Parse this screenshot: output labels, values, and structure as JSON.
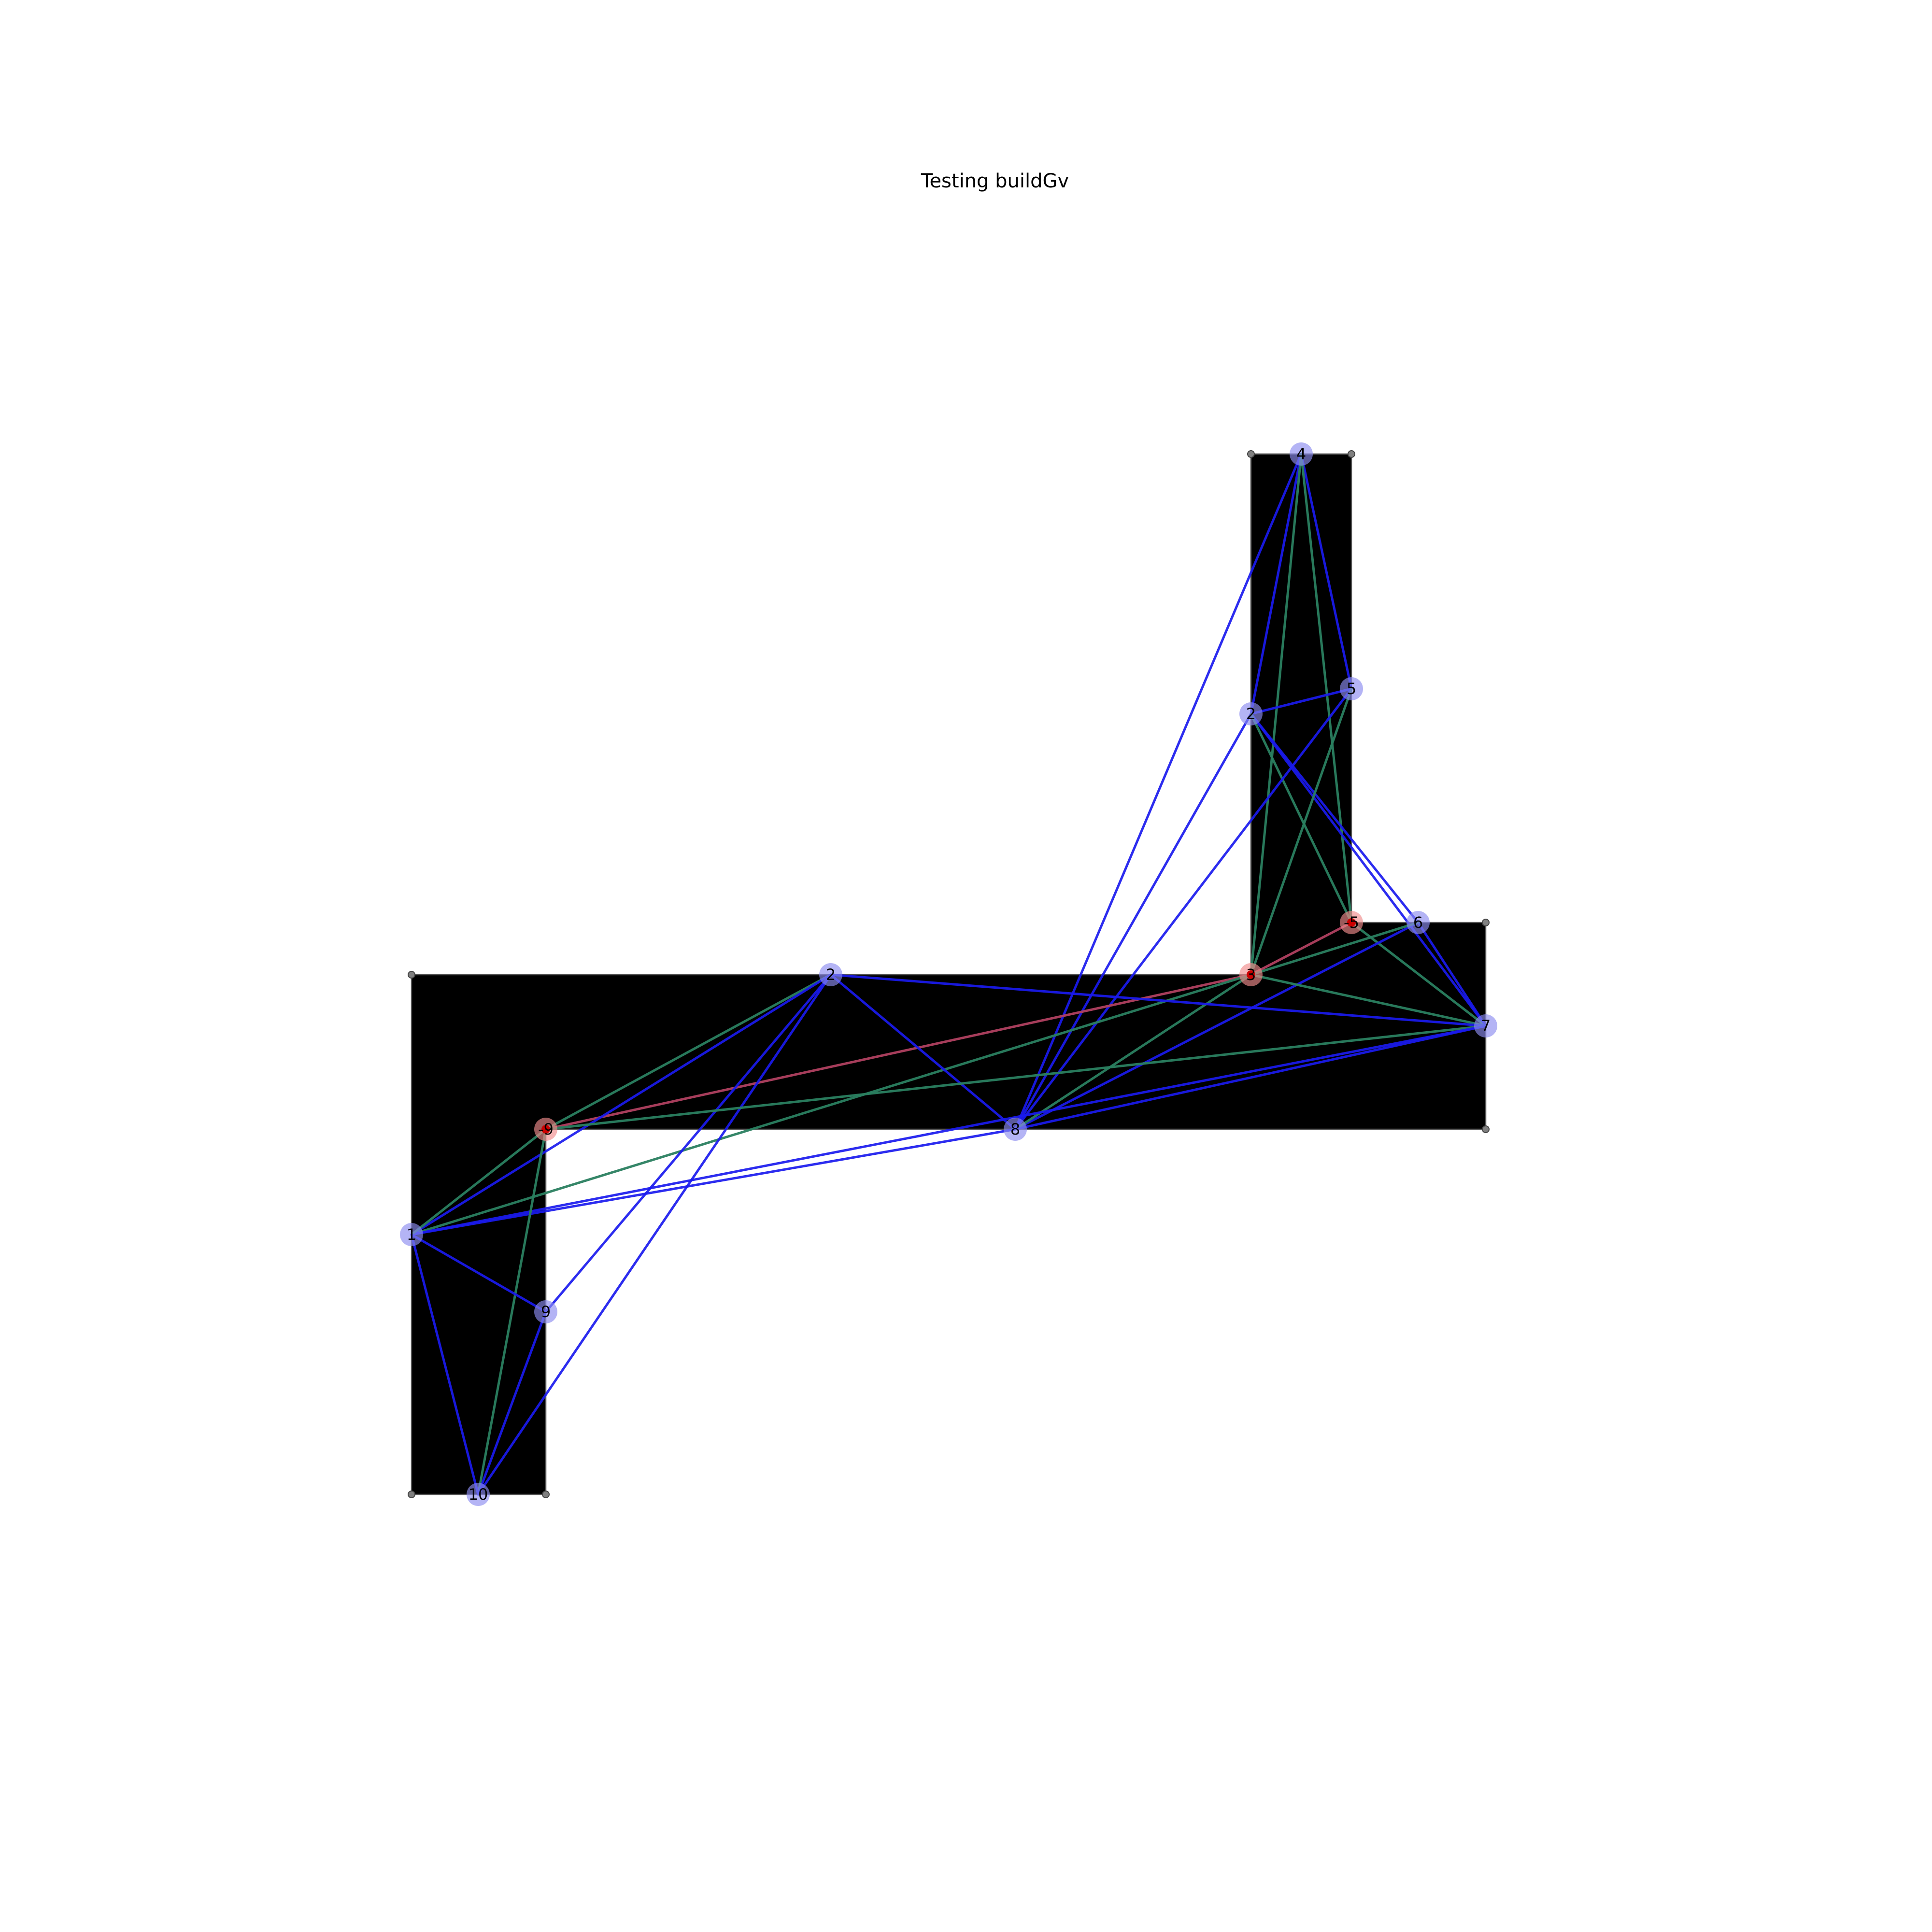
{
  "title": "Testing buildGv",
  "colors": {
    "region_fill": "#b0cbe3",
    "edge_blue": "#1a1aee",
    "edge_green": "#2a8060",
    "edge_dark_green": "#138a13",
    "edge_red": "#b04060",
    "node_blue": "#8c8cf0",
    "node_red": "#f08c8c",
    "corner": "#808080"
  },
  "nodes": [
    {
      "id": "n1",
      "label": "1",
      "type": "blue"
    },
    {
      "id": "n2",
      "label": "2",
      "type": "blue"
    },
    {
      "id": "n3",
      "label": "3",
      "type": "red"
    },
    {
      "id": "n4",
      "label": "4",
      "type": "blue"
    },
    {
      "id": "n5",
      "label": "5",
      "type": "blue"
    },
    {
      "id": "n6",
      "label": "6",
      "type": "blue"
    },
    {
      "id": "n7",
      "label": "7",
      "type": "blue"
    },
    {
      "id": "n8",
      "label": "8",
      "type": "blue"
    },
    {
      "id": "n9",
      "label": "9",
      "type": "blue"
    },
    {
      "id": "n10",
      "label": "10",
      "type": "blue"
    },
    {
      "id": "nA",
      "label": "-9",
      "type": "red"
    },
    {
      "id": "nB",
      "label": "2",
      "type": "blue"
    },
    {
      "id": "nC",
      "label": "-5",
      "type": "red"
    }
  ],
  "edges": [
    {
      "from": "n4",
      "to": "n5",
      "color": "blue"
    },
    {
      "from": "n4",
      "to": "nB",
      "color": "blue"
    },
    {
      "from": "n4",
      "to": "n8",
      "color": "blue"
    },
    {
      "from": "n4",
      "to": "n3",
      "color": "green"
    },
    {
      "from": "n4",
      "to": "nC",
      "color": "green"
    },
    {
      "from": "nB",
      "to": "n5",
      "color": "blue"
    },
    {
      "from": "nB",
      "to": "n8",
      "color": "blue"
    },
    {
      "from": "nB",
      "to": "n6",
      "color": "blue"
    },
    {
      "from": "nB",
      "to": "n7",
      "color": "blue"
    },
    {
      "from": "nB",
      "to": "nC",
      "color": "green"
    },
    {
      "from": "n5",
      "to": "n8",
      "color": "blue"
    },
    {
      "from": "n5",
      "to": "n3",
      "color": "green"
    },
    {
      "from": "nC",
      "to": "n3",
      "color": "red"
    },
    {
      "from": "nC",
      "to": "n7",
      "color": "green"
    },
    {
      "from": "n6",
      "to": "n7",
      "color": "blue"
    },
    {
      "from": "n6",
      "to": "n8",
      "color": "blue"
    },
    {
      "from": "n6",
      "to": "n3",
      "color": "green"
    },
    {
      "from": "n3",
      "to": "n7",
      "color": "green"
    },
    {
      "from": "n3",
      "to": "n8",
      "color": "green"
    },
    {
      "from": "n3",
      "to": "nA",
      "color": "red"
    },
    {
      "from": "n3",
      "to": "n1",
      "color": "green"
    },
    {
      "from": "n2",
      "to": "n7",
      "color": "blue"
    },
    {
      "from": "n2",
      "to": "n8",
      "color": "blue"
    },
    {
      "from": "n2",
      "to": "nA",
      "color": "green"
    },
    {
      "from": "n2",
      "to": "n1",
      "color": "blue"
    },
    {
      "from": "n2",
      "to": "n9",
      "color": "blue"
    },
    {
      "from": "n2",
      "to": "n10",
      "color": "blue"
    },
    {
      "from": "n7",
      "to": "n8",
      "color": "blue"
    },
    {
      "from": "n7",
      "to": "nA",
      "color": "green"
    },
    {
      "from": "n7",
      "to": "n1",
      "color": "blue"
    },
    {
      "from": "n8",
      "to": "n1",
      "color": "blue"
    },
    {
      "from": "nA",
      "to": "n1",
      "color": "green"
    },
    {
      "from": "nA",
      "to": "n10",
      "color": "green"
    },
    {
      "from": "n1",
      "to": "n9",
      "color": "blue"
    },
    {
      "from": "n1",
      "to": "n10",
      "color": "blue"
    },
    {
      "from": "n9",
      "to": "n10",
      "color": "blue"
    }
  ]
}
